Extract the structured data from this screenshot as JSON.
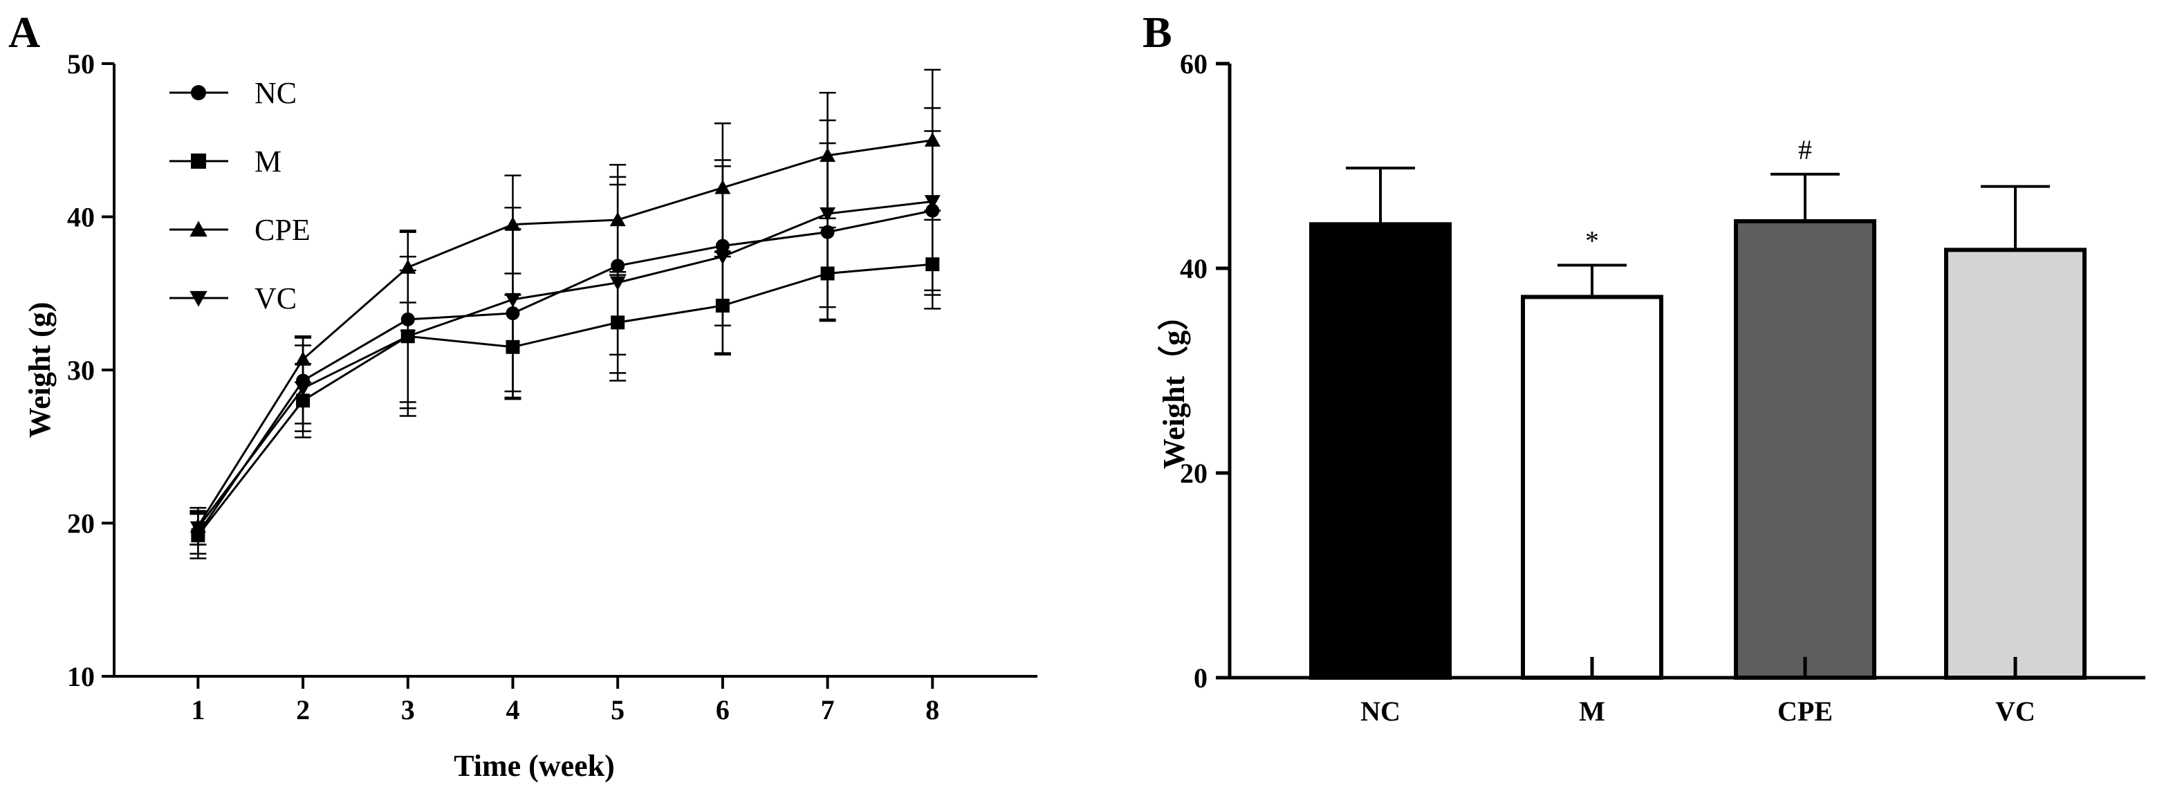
{
  "chart_data": [
    {
      "panel": "A",
      "type": "line",
      "title": "",
      "xlabel": "Time (week)",
      "ylabel": "Weight (g)",
      "x": [
        1,
        2,
        3,
        4,
        5,
        6,
        7,
        8
      ],
      "xticks": [
        "1",
        "2",
        "3",
        "4",
        "5",
        "6",
        "7",
        "8"
      ],
      "xlim": [
        0.2,
        9
      ],
      "ylim": [
        10,
        50
      ],
      "yticks": [
        "10",
        "20",
        "30",
        "40",
        "50"
      ],
      "legend_position": "top-left",
      "series": [
        {
          "name": "NC",
          "marker": "circle",
          "values": [
            19.3,
            29.3,
            33.3,
            33.7,
            36.8,
            38.1,
            39.0,
            40.4
          ],
          "errors": [
            1.3,
            2.8,
            5.8,
            5.5,
            5.8,
            5.2,
            5.8,
            5.2
          ]
        },
        {
          "name": "M",
          "marker": "square",
          "values": [
            19.2,
            28.0,
            32.2,
            31.5,
            33.1,
            34.2,
            36.3,
            36.9
          ],
          "errors": [
            1.5,
            2.4,
            4.3,
            3.4,
            3.3,
            3.2,
            3.0,
            2.9
          ]
        },
        {
          "name": "CPE",
          "marker": "triangle-up",
          "values": [
            19.8,
            30.7,
            36.7,
            39.5,
            39.8,
            41.9,
            44.0,
            45.0
          ],
          "errors": [
            1.2,
            1.5,
            2.3,
            3.2,
            3.6,
            4.2,
            4.1,
            4.6
          ]
        },
        {
          "name": "VC",
          "marker": "triangle-down",
          "values": [
            19.7,
            28.8,
            32.2,
            34.6,
            35.7,
            37.4,
            40.2,
            41.0
          ],
          "errors": [
            1.1,
            2.8,
            5.2,
            6.0,
            6.4,
            6.3,
            6.1,
            6.1
          ]
        }
      ]
    },
    {
      "panel": "B",
      "type": "bar",
      "title": "",
      "xlabel": "",
      "ylabel": "Weight（g）",
      "categories": [
        "NC",
        "M",
        "CPE",
        "VC"
      ],
      "values": [
        44.3,
        37.2,
        44.6,
        41.8
      ],
      "errors": [
        5.5,
        3.1,
        4.6,
        6.2
      ],
      "annotations": [
        "",
        "*",
        "#",
        ""
      ],
      "ylim": [
        0,
        60
      ],
      "yticks": [
        "0",
        "20",
        "40",
        "60"
      ],
      "colors": [
        "#000000",
        "#ffffff",
        "#5e5e5e",
        "#d4d4d4"
      ]
    }
  ]
}
